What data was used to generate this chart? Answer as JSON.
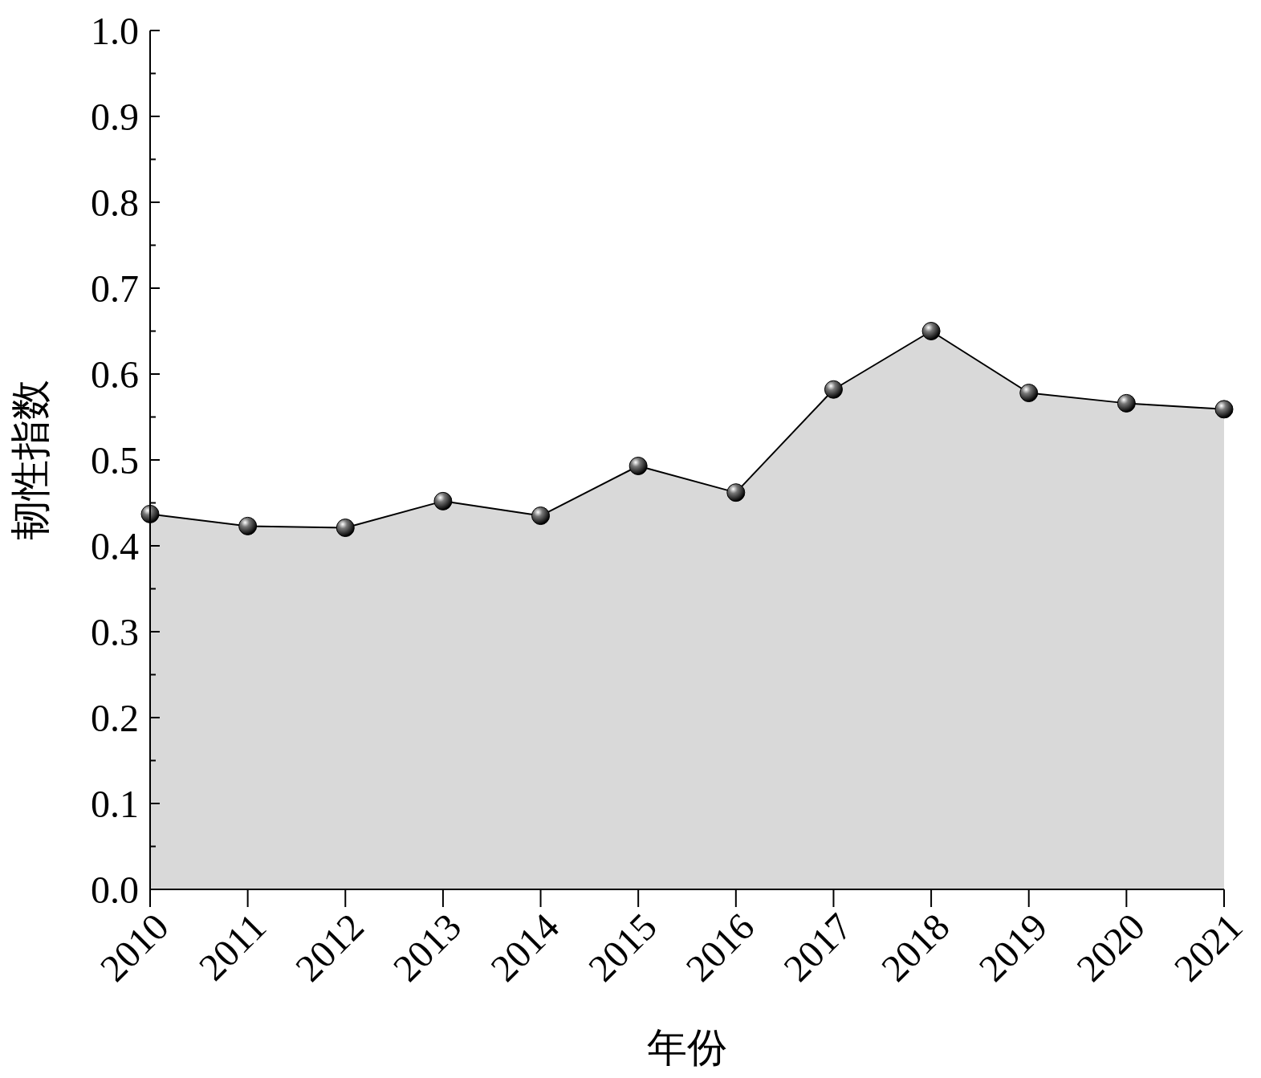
{
  "chart_data": {
    "type": "area",
    "xlabel": "年份",
    "ylabel": "韧性指数",
    "categories": [
      "2010",
      "2011",
      "2012",
      "2013",
      "2014",
      "2015",
      "2016",
      "2017",
      "2018",
      "2019",
      "2020",
      "2021"
    ],
    "series": [
      {
        "color": "#d9d9d9",
        "values": [
          0.437,
          0.423,
          0.421,
          0.452,
          0.435,
          0.493,
          0.462,
          0.582,
          0.65,
          0.578,
          0.566,
          0.559
        ]
      }
    ],
    "ylim": [
      0,
      1.0
    ],
    "yticks": [
      {
        "value": 0,
        "label": "0.0"
      },
      {
        "value": 0.05,
        "label": null
      },
      0.1,
      {
        "value": 0.15,
        "label": null
      },
      0.2,
      {
        "value": 0.25,
        "label": null
      },
      0.3,
      {
        "value": 0.35,
        "label": null
      },
      0.4,
      {
        "value": 0.45,
        "label": null
      },
      0.5,
      {
        "value": 0.55,
        "label": null
      },
      0.6,
      {
        "value": 0.65,
        "label": null
      },
      0.7,
      {
        "value": 0.75,
        "label": null
      },
      0.8,
      {
        "value": 0.85,
        "label": null
      },
      0.9,
      {
        "value": 0.95,
        "label": null
      },
      {
        "value": 1.0,
        "label": "1.0"
      }
    ],
    "marker": "circle",
    "line_style": "solid"
  }
}
